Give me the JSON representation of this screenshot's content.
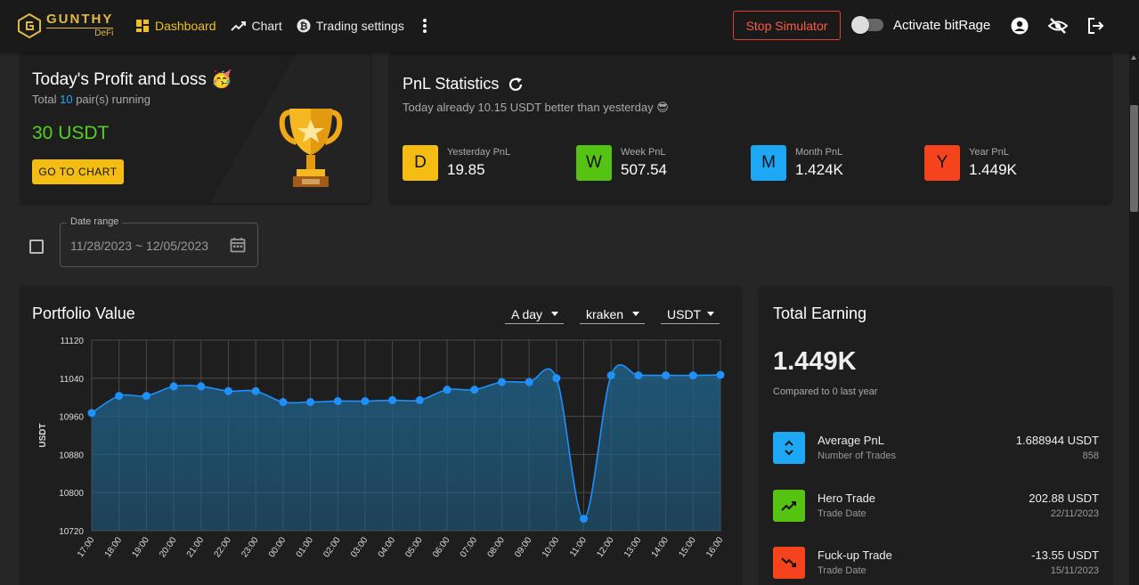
{
  "header": {
    "logo_main": "GUNTHY",
    "logo_sub": "DeFi",
    "nav": [
      {
        "label": "Dashboard",
        "icon": "dashboard-icon"
      },
      {
        "label": "Chart",
        "icon": "trending-up-icon"
      },
      {
        "label": "Trading settings",
        "icon": "bitcoin-icon"
      }
    ],
    "stop_label": "Stop Simulator",
    "toggle_label": "Activate bitRage"
  },
  "profit_card": {
    "title": "Today's Profit and Loss",
    "emoji": "🥳",
    "sub_prefix": "Total",
    "pairs": "10",
    "sub_suffix": "pair(s) running",
    "value": "30 USDT",
    "button": "GO TO CHART"
  },
  "pnl_card": {
    "title": "PnL Statistics",
    "subtitle": "Today already 10.15 USDT better than yesterday 😎",
    "stats": [
      {
        "letter": "D",
        "label": "Yesterday PnL",
        "value": "19.85",
        "color": "#f5bd12"
      },
      {
        "letter": "W",
        "label": "Week PnL",
        "value": "507.54",
        "color": "#55c312"
      },
      {
        "letter": "M",
        "label": "Month PnL",
        "value": "1.424K",
        "color": "#1ea7f5"
      },
      {
        "letter": "Y",
        "label": "Year PnL",
        "value": "1.449K",
        "color": "#f5431e"
      }
    ]
  },
  "date_range": {
    "label": "Date range",
    "value": "11/28/2023 ~ 12/05/2023"
  },
  "portfolio": {
    "title": "Portfolio Value",
    "selects": [
      "A day",
      "kraken",
      "USDT"
    ]
  },
  "chart_data": {
    "type": "area",
    "ylabel": "USDT",
    "ylim": [
      10720,
      11120
    ],
    "yticks": [
      10720,
      10800,
      10880,
      10960,
      11040,
      11120
    ],
    "categories": [
      "17:00",
      "18:00",
      "19:00",
      "20:00",
      "21:00",
      "22:00",
      "23:00",
      "00:00",
      "01:00",
      "02:00",
      "03:00",
      "04:00",
      "05:00",
      "06:00",
      "07:00",
      "08:00",
      "09:00",
      "10:00",
      "11:00",
      "12:00",
      "13:00",
      "14:00",
      "15:00",
      "16:00"
    ],
    "values": [
      10967,
      11003,
      11003,
      11023,
      11023,
      11013,
      11013,
      10990,
      10990,
      10992,
      10992,
      10994,
      10994,
      11016,
      11016,
      11032,
      11032,
      11040,
      10745,
      11046,
      11046,
      11046,
      11046,
      11047
    ],
    "line_color": "#1e90ff",
    "fill_color": "#1f5f85"
  },
  "earning": {
    "title": "Total Earning",
    "value": "1.449K",
    "sub": "Compared to 0 last year",
    "rows": [
      {
        "label": "Average PnL",
        "sub": "Number of Trades",
        "value": "1.688944 USDT",
        "value2": "858",
        "color": "#1ea7f5",
        "icon": "unfold-icon"
      },
      {
        "label": "Hero Trade",
        "sub": "Trade Date",
        "value": "202.88 USDT",
        "value2": "22/11/2023",
        "color": "#55c312",
        "icon": "trending-up-icon"
      },
      {
        "label": "Fuck-up Trade",
        "sub": "Trade Date",
        "value": "-13.55 USDT",
        "value2": "15/11/2023",
        "color": "#f5431e",
        "icon": "trending-down-icon"
      }
    ]
  }
}
